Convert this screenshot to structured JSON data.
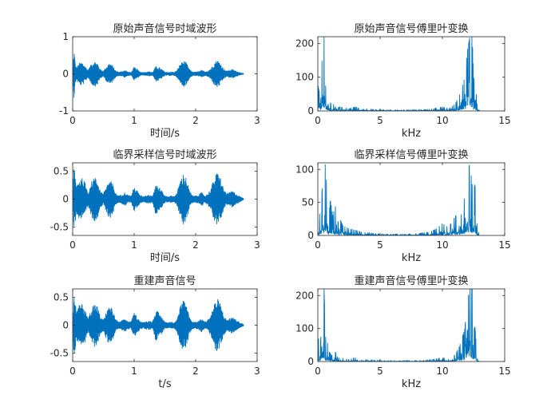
{
  "chart_data": [
    {
      "type": "line",
      "title": "原始声音信号时域波形",
      "xlabel": "时间/s",
      "ylabel": "",
      "xlim": [
        0,
        3
      ],
      "ylim": [
        -1,
        1
      ],
      "xticks": [
        0,
        1,
        2,
        3
      ],
      "yticks": [
        -1,
        0,
        1
      ],
      "grid": false,
      "color": "#0072BD",
      "x": [
        0,
        0.02,
        0.04,
        0.06,
        0.1,
        0.15,
        0.2,
        0.25,
        0.3,
        0.35,
        0.4,
        0.45,
        0.5,
        0.55,
        0.6,
        0.65,
        0.7,
        0.75,
        0.8,
        0.85,
        0.9,
        0.95,
        1.0,
        1.05,
        1.1,
        1.15,
        1.2,
        1.25,
        1.3,
        1.35,
        1.4,
        1.45,
        1.5,
        1.55,
        1.6,
        1.65,
        1.7,
        1.75,
        1.8,
        1.85,
        1.9,
        1.95,
        2.0,
        2.05,
        2.1,
        2.15,
        2.2,
        2.25,
        2.3,
        2.35,
        2.4,
        2.45,
        2.5,
        2.55,
        2.6,
        2.65,
        2.7,
        2.75,
        2.78
      ],
      "envelope": [
        0.02,
        0.7,
        0.35,
        0.15,
        0.28,
        0.32,
        0.22,
        0.1,
        0.26,
        0.35,
        0.3,
        0.12,
        0.08,
        0.2,
        0.3,
        0.22,
        0.08,
        0.05,
        0.06,
        0.1,
        0.05,
        0.04,
        0.18,
        0.12,
        0.05,
        0.04,
        0.05,
        0.06,
        0.04,
        0.2,
        0.18,
        0.12,
        0.05,
        0.04,
        0.05,
        0.04,
        0.1,
        0.28,
        0.35,
        0.3,
        0.12,
        0.05,
        0.05,
        0.06,
        0.1,
        0.05,
        0.08,
        0.15,
        0.3,
        0.38,
        0.3,
        0.15,
        0.08,
        0.1,
        0.12,
        0.08,
        0.05,
        0.02,
        0.01
      ]
    },
    {
      "type": "line",
      "title": "原始声音信号傅里叶变换",
      "xlabel": "kHz",
      "ylabel": "",
      "xlim": [
        0,
        15
      ],
      "ylim": [
        0,
        220
      ],
      "xticks": [
        0,
        5,
        10,
        15
      ],
      "yticks": [
        0,
        100,
        200
      ],
      "grid": false,
      "color": "#0072BD",
      "x": [
        0,
        0.1,
        0.2,
        0.3,
        0.4,
        0.5,
        0.6,
        0.7,
        0.8,
        0.9,
        1.0,
        1.2,
        1.4,
        1.6,
        1.8,
        2.0,
        2.5,
        3.0,
        3.5,
        4.0,
        5.0,
        6.0,
        7.0,
        8.0,
        9.0,
        9.5,
        10.0,
        10.5,
        11.0,
        11.3,
        11.5,
        11.8,
        12.0,
        12.2,
        12.4,
        12.5,
        12.6,
        12.7,
        12.8,
        13.0
      ],
      "peaks": [
        80,
        60,
        50,
        110,
        220,
        220,
        90,
        40,
        60,
        30,
        25,
        15,
        30,
        10,
        12,
        10,
        6,
        12,
        4,
        6,
        3,
        3,
        3,
        3,
        5,
        8,
        12,
        6,
        20,
        40,
        60,
        100,
        180,
        220,
        220,
        90,
        110,
        60,
        10,
        0
      ]
    },
    {
      "type": "line",
      "title": "临界采样信号时域波形",
      "xlabel": "时间/s",
      "ylabel": "",
      "xlim": [
        0,
        3
      ],
      "ylim": [
        -0.65,
        0.65
      ],
      "xticks": [
        0,
        1,
        2,
        3
      ],
      "yticks": [
        -0.5,
        0,
        0.5
      ],
      "grid": false,
      "color": "#0072BD",
      "x": [
        0,
        0.02,
        0.04,
        0.06,
        0.1,
        0.15,
        0.2,
        0.25,
        0.3,
        0.35,
        0.4,
        0.45,
        0.5,
        0.55,
        0.6,
        0.65,
        0.7,
        0.75,
        0.8,
        0.85,
        0.9,
        0.95,
        1.0,
        1.05,
        1.1,
        1.15,
        1.2,
        1.25,
        1.3,
        1.35,
        1.4,
        1.45,
        1.5,
        1.55,
        1.6,
        1.65,
        1.7,
        1.75,
        1.8,
        1.85,
        1.9,
        1.95,
        2.0,
        2.05,
        2.1,
        2.15,
        2.2,
        2.25,
        2.3,
        2.35,
        2.4,
        2.45,
        2.5,
        2.55,
        2.6,
        2.65,
        2.7,
        2.75,
        2.78
      ],
      "envelope": [
        0.02,
        0.62,
        0.45,
        0.25,
        0.35,
        0.38,
        0.3,
        0.12,
        0.3,
        0.4,
        0.35,
        0.15,
        0.1,
        0.25,
        0.35,
        0.28,
        0.1,
        0.06,
        0.08,
        0.12,
        0.07,
        0.06,
        0.22,
        0.15,
        0.07,
        0.05,
        0.07,
        0.08,
        0.06,
        0.28,
        0.22,
        0.15,
        0.06,
        0.05,
        0.06,
        0.05,
        0.12,
        0.35,
        0.45,
        0.38,
        0.15,
        0.06,
        0.06,
        0.08,
        0.12,
        0.06,
        0.1,
        0.2,
        0.38,
        0.48,
        0.4,
        0.2,
        0.1,
        0.12,
        0.15,
        0.1,
        0.06,
        0.03,
        0.01
      ]
    },
    {
      "type": "line",
      "title": "临界采样信号傅里叶变换",
      "xlabel": "kHz",
      "ylabel": "",
      "xlim": [
        0,
        15
      ],
      "ylim": [
        0,
        110
      ],
      "xticks": [
        0,
        5,
        10,
        15
      ],
      "yticks": [
        0,
        50,
        100
      ],
      "grid": false,
      "color": "#0072BD",
      "x": [
        0,
        0.1,
        0.2,
        0.3,
        0.4,
        0.5,
        0.6,
        0.7,
        0.8,
        0.9,
        1.0,
        1.2,
        1.4,
        1.6,
        1.8,
        2.0,
        2.5,
        3.0,
        3.5,
        4.0,
        5.0,
        6.0,
        7.0,
        8.0,
        9.0,
        9.5,
        10.0,
        10.5,
        11.0,
        11.3,
        11.5,
        11.8,
        12.0,
        12.2,
        12.4,
        12.5,
        12.6,
        12.7,
        12.8,
        13.0
      ],
      "peaks": [
        40,
        30,
        35,
        55,
        85,
        60,
        110,
        80,
        40,
        30,
        55,
        30,
        45,
        20,
        25,
        15,
        10,
        8,
        5,
        4,
        2,
        2,
        2,
        3,
        5,
        10,
        18,
        12,
        28,
        35,
        30,
        60,
        90,
        110,
        75,
        60,
        80,
        45,
        10,
        0
      ]
    },
    {
      "type": "line",
      "title": "重建声音信号",
      "xlabel": "t/s",
      "ylabel": "",
      "xlim": [
        0,
        3
      ],
      "ylim": [
        -0.65,
        0.65
      ],
      "xticks": [
        0,
        1,
        2,
        3
      ],
      "yticks": [
        -0.5,
        0,
        0.5
      ],
      "grid": false,
      "color": "#0072BD",
      "x": [
        0,
        0.02,
        0.04,
        0.06,
        0.1,
        0.15,
        0.2,
        0.25,
        0.3,
        0.35,
        0.4,
        0.45,
        0.5,
        0.55,
        0.6,
        0.65,
        0.7,
        0.75,
        0.8,
        0.85,
        0.9,
        0.95,
        1.0,
        1.05,
        1.1,
        1.15,
        1.2,
        1.25,
        1.3,
        1.35,
        1.4,
        1.45,
        1.5,
        1.55,
        1.6,
        1.65,
        1.7,
        1.75,
        1.8,
        1.85,
        1.9,
        1.95,
        2.0,
        2.05,
        2.1,
        2.15,
        2.2,
        2.25,
        2.3,
        2.35,
        2.4,
        2.45,
        2.5,
        2.55,
        2.6,
        2.65,
        2.7,
        2.75,
        2.78
      ],
      "envelope": [
        0.02,
        0.62,
        0.45,
        0.25,
        0.35,
        0.38,
        0.3,
        0.12,
        0.3,
        0.4,
        0.35,
        0.15,
        0.1,
        0.25,
        0.35,
        0.28,
        0.1,
        0.06,
        0.08,
        0.12,
        0.07,
        0.06,
        0.22,
        0.15,
        0.07,
        0.05,
        0.07,
        0.08,
        0.06,
        0.28,
        0.22,
        0.15,
        0.06,
        0.05,
        0.06,
        0.05,
        0.12,
        0.35,
        0.45,
        0.38,
        0.15,
        0.06,
        0.06,
        0.08,
        0.12,
        0.06,
        0.1,
        0.2,
        0.38,
        0.48,
        0.4,
        0.2,
        0.1,
        0.12,
        0.15,
        0.1,
        0.06,
        0.03,
        0.01
      ]
    },
    {
      "type": "line",
      "title": "重建声音信号傅里叶变换",
      "xlabel": "kHz",
      "ylabel": "",
      "xlim": [
        0,
        15
      ],
      "ylim": [
        0,
        220
      ],
      "xticks": [
        0,
        5,
        10,
        15
      ],
      "yticks": [
        0,
        100,
        200
      ],
      "grid": false,
      "color": "#0072BD",
      "x": [
        0,
        0.1,
        0.2,
        0.3,
        0.4,
        0.5,
        0.6,
        0.7,
        0.8,
        0.9,
        1.0,
        1.2,
        1.4,
        1.6,
        1.8,
        2.0,
        2.5,
        3.0,
        3.5,
        4.0,
        5.0,
        6.0,
        7.0,
        8.0,
        9.0,
        9.5,
        10.0,
        10.5,
        11.0,
        11.3,
        11.5,
        11.8,
        12.0,
        12.2,
        12.4,
        12.5,
        12.6,
        12.7,
        12.8,
        13.0
      ],
      "peaks": [
        80,
        60,
        50,
        110,
        220,
        220,
        90,
        40,
        60,
        30,
        25,
        15,
        30,
        10,
        12,
        10,
        6,
        12,
        4,
        6,
        3,
        3,
        3,
        3,
        5,
        8,
        12,
        6,
        20,
        40,
        60,
        100,
        180,
        220,
        220,
        90,
        110,
        60,
        10,
        0
      ]
    }
  ]
}
